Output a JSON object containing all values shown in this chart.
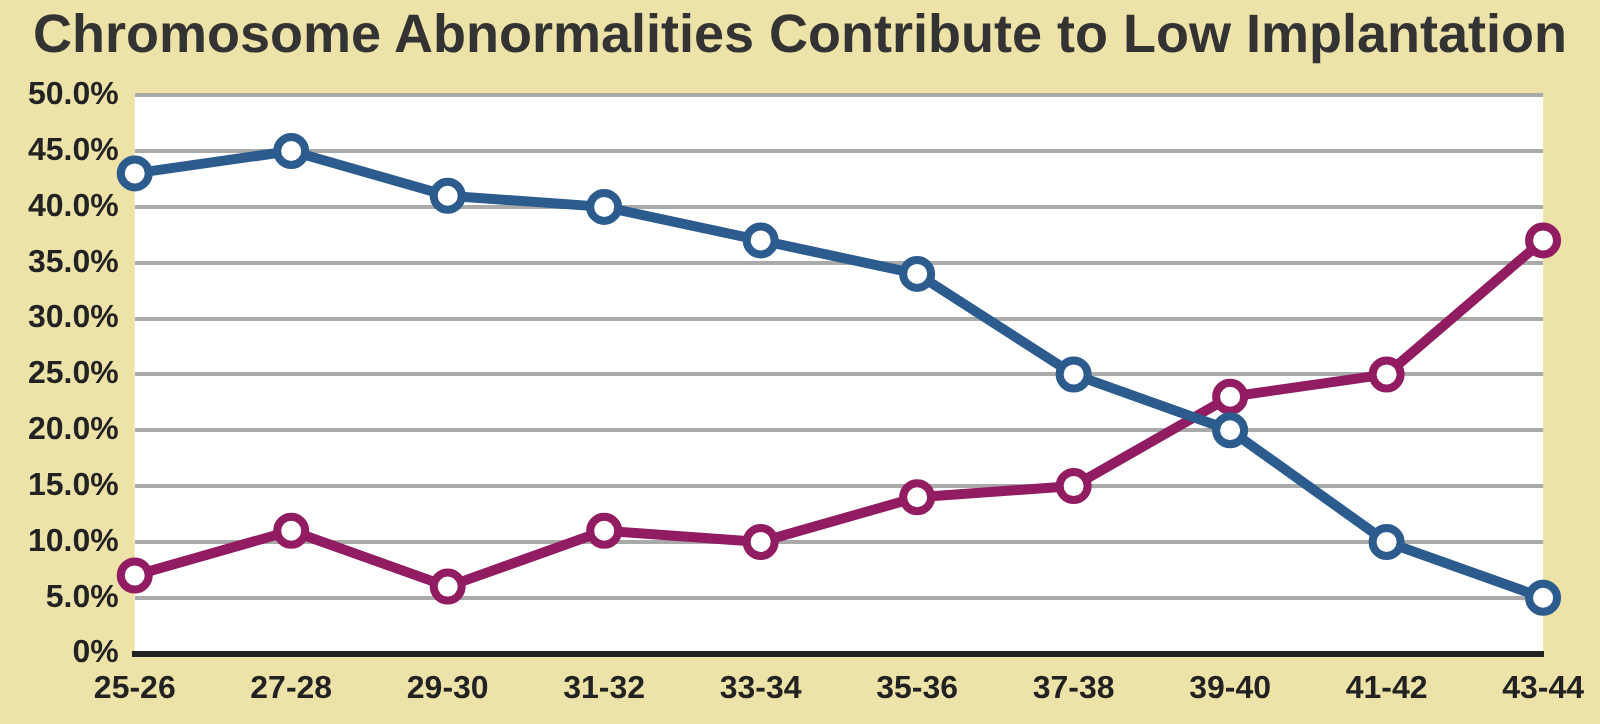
{
  "chart_data": {
    "type": "line",
    "title": "Chromosome Abnormalities Contribute to Low Implantation",
    "categories": [
      "25-26",
      "27-28",
      "29-30",
      "31-32",
      "33-34",
      "35-36",
      "37-38",
      "39-40",
      "41-42",
      "43-44"
    ],
    "series": [
      {
        "color": "#2c5b8e",
        "values": [
          43,
          45,
          41,
          40,
          37,
          34,
          25,
          20,
          10,
          5
        ]
      },
      {
        "color": "#921c62",
        "values": [
          7,
          11,
          6,
          11,
          10,
          14,
          15,
          23,
          25,
          37
        ]
      }
    ],
    "ylim": [
      0,
      50
    ],
    "yticks": [
      {
        "value": 0,
        "label": "0%"
      },
      {
        "value": 5,
        "label": "5.0%"
      },
      {
        "value": 10,
        "label": "10.0%"
      },
      {
        "value": 15,
        "label": "15.0%"
      },
      {
        "value": 20,
        "label": "20.0%"
      },
      {
        "value": 25,
        "label": "25.0%"
      },
      {
        "value": 30,
        "label": "30.0%"
      },
      {
        "value": 35,
        "label": "35.0%"
      },
      {
        "value": 40,
        "label": "40.0%"
      },
      {
        "value": 45,
        "label": "45.0%"
      },
      {
        "value": 50,
        "label": "50.0%"
      }
    ],
    "grid": "y",
    "marker": "circle",
    "line_style": "solid",
    "legend": false
  }
}
